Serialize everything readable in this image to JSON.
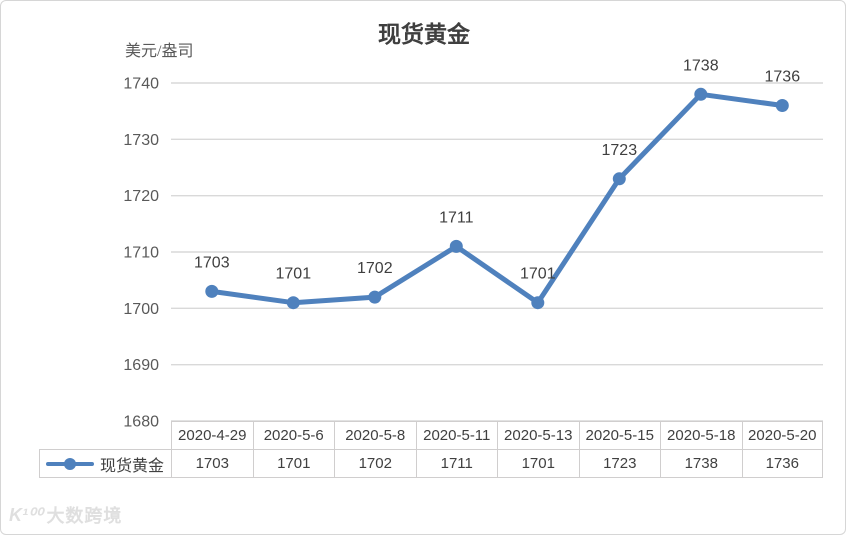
{
  "chart_data": {
    "type": "line",
    "title": "现货黄金",
    "ylabel": "美元/盎司",
    "categories": [
      "2020-4-29",
      "2020-5-6",
      "2020-5-8",
      "2020-5-11",
      "2020-5-13",
      "2020-5-15",
      "2020-5-18",
      "2020-5-20"
    ],
    "series": [
      {
        "name": "现货黄金",
        "values": [
          1703,
          1701,
          1702,
          1711,
          1701,
          1723,
          1738,
          1736
        ]
      }
    ],
    "ylim": [
      1680,
      1740
    ],
    "yticks": [
      1740,
      1730,
      1720,
      1710,
      1700,
      1690,
      1680
    ],
    "grid": true,
    "data_labels": true,
    "legend_position": "table-left",
    "line_color": "#4f81bd",
    "grid_color": "#d9d9d9",
    "tick_label_color": "#595959",
    "data_label_color": "#3f3f3f"
  },
  "watermark": {
    "logo": "K¹⁰⁰",
    "text": "大数跨境"
  }
}
